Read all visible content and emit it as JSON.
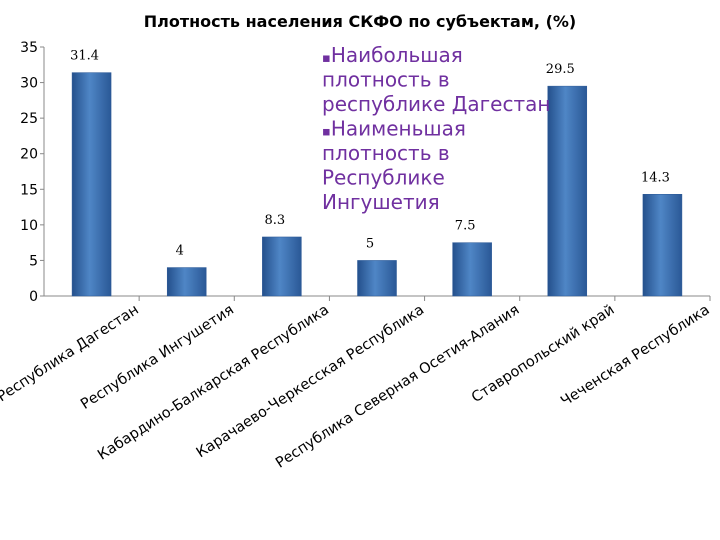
{
  "chart_data": {
    "type": "bar",
    "title": "Плотность населения СКФО по субъектам, (%)",
    "categories": [
      "Республика Дагестан",
      "Республика Ингушетия",
      "Кабардино-Балкарская Республика",
      "Карачаево-Черкесская Республика",
      "Республика Северная Осетия-Алания",
      "Ставропольский край",
      "Чеченская Республика"
    ],
    "values": [
      31.4,
      4,
      8.3,
      5,
      7.5,
      29.5,
      14.3
    ],
    "data_labels": [
      "31.4",
      "4",
      "8.3",
      "5",
      "7.5",
      "29.5",
      "14.3"
    ],
    "ylim": [
      0,
      35
    ],
    "yticks": [
      0,
      5,
      10,
      15,
      20,
      25,
      30,
      35
    ],
    "grid": false,
    "bar_color": "#3f74b5",
    "annotation_color": "#7030a0",
    "annotation_lines": [
      "Наибольшая",
      "плотность в",
      "республике Дагестан",
      "Наименьшая",
      "плотность в",
      "Республике",
      "Ингушетия"
    ]
  }
}
